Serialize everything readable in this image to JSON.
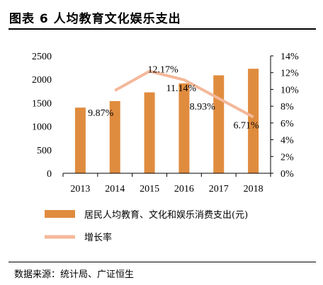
{
  "title": "图表 6 人均教育文化娱乐支出",
  "source": "数据来源：统计局、广证恒生",
  "colors": {
    "bar": "#E08C3E",
    "line": "#F4B89A",
    "axis": "#000000"
  },
  "chart_data": {
    "type": "bar",
    "categories": [
      "2013",
      "2014",
      "2015",
      "2016",
      "2017",
      "2018"
    ],
    "series": [
      {
        "name": "居民人均教育、文化和娱乐消费支出(元)",
        "type": "bar",
        "axis": "left",
        "values": [
          1398,
          1536,
          1723,
          1915,
          2086,
          2226
        ]
      },
      {
        "name": "增长率",
        "type": "line",
        "axis": "right",
        "values": [
          null,
          9.87,
          12.17,
          11.14,
          8.93,
          6.71
        ],
        "labels": [
          "",
          "9.87%",
          "12.17%",
          "11.14%",
          "8.93%",
          "6.71%"
        ]
      }
    ],
    "yleft": {
      "lim": [
        0,
        2500
      ],
      "ticks": [
        "0",
        "500",
        "1000",
        "1500",
        "2000",
        "2500"
      ]
    },
    "yright": {
      "lim": [
        0,
        14
      ],
      "ticks": [
        "0%",
        "2%",
        "4%",
        "6%",
        "8%",
        "10%",
        "12%",
        "14%"
      ]
    },
    "legend_position": "bottom",
    "grid": false
  }
}
